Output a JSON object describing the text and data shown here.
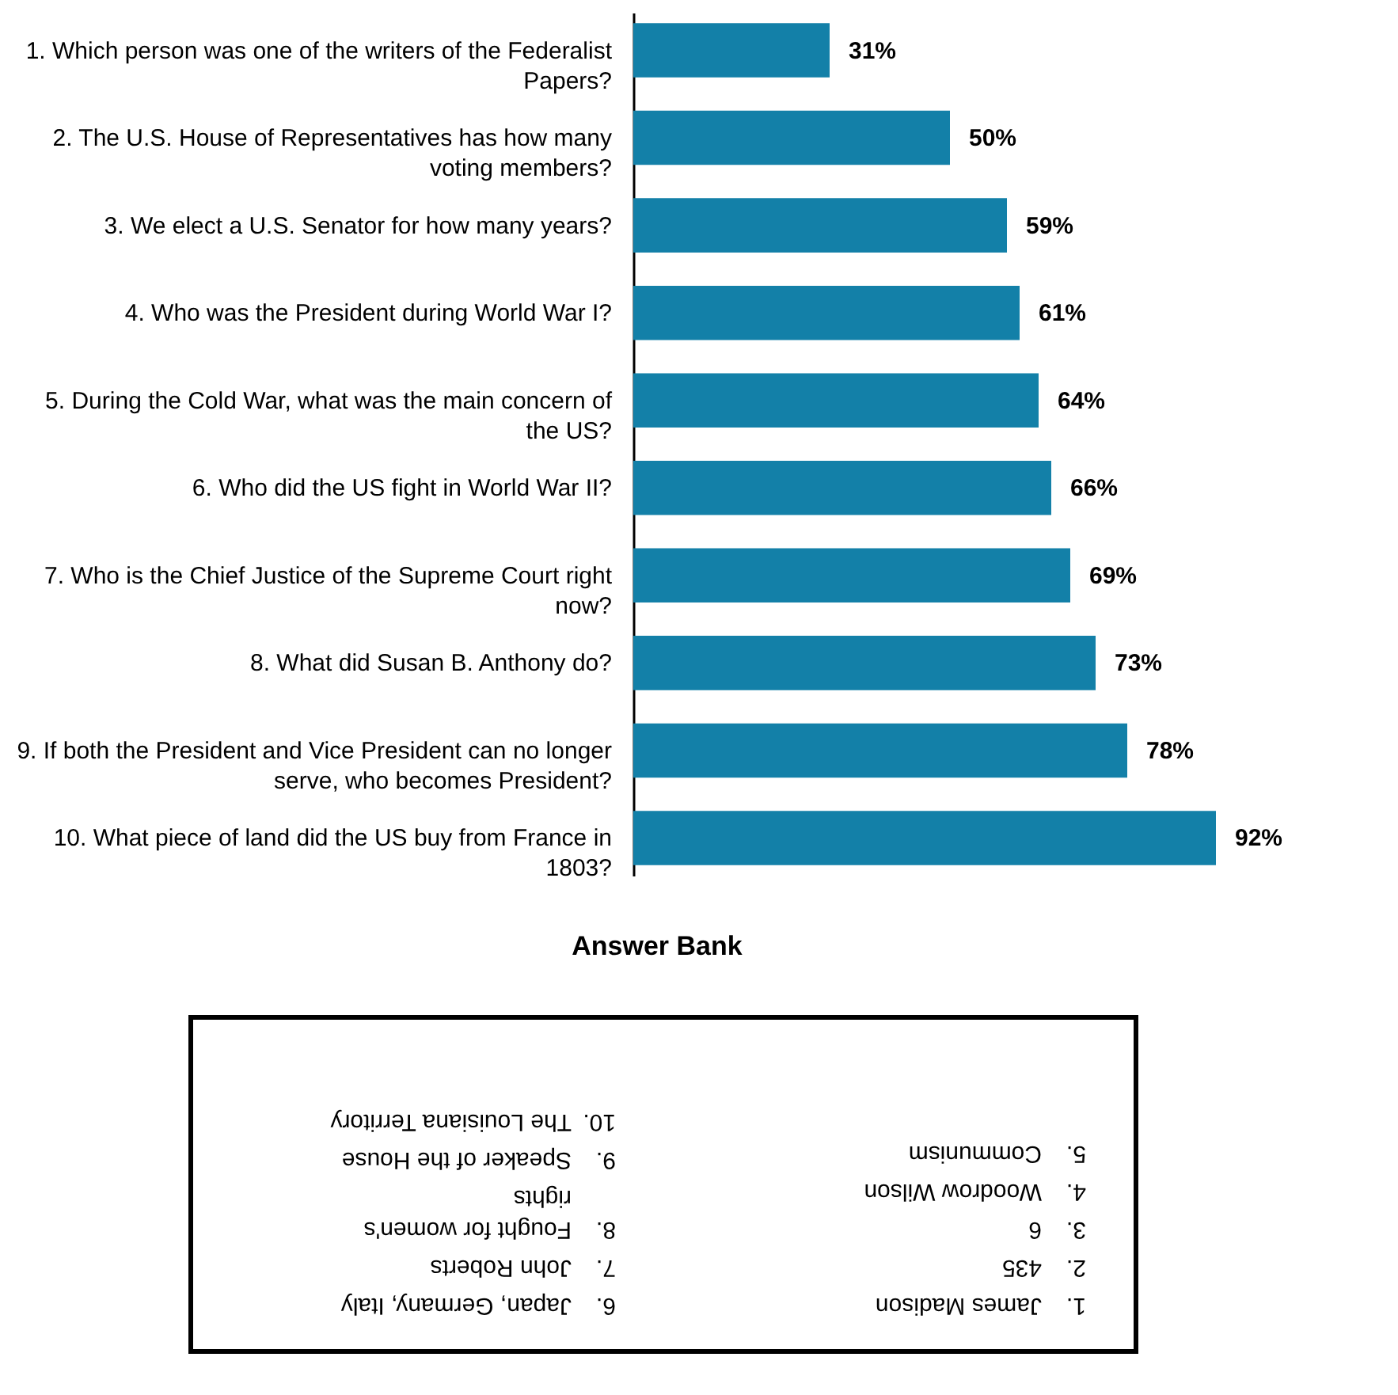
{
  "chart_data": {
    "type": "bar",
    "orientation": "horizontal",
    "color": "#1380a8",
    "categories": [
      "1. Which person was one of the writers of the Federalist Papers?",
      "2. The U.S. House of Representatives has how many voting members?",
      "3. We elect a U.S. Senator for how many years?",
      "4. Who was the President during World War I?",
      "5. During the Cold War, what was the main concern of the US?",
      "6. Who did the US fight in World War II?",
      "7. Who is the Chief Justice of the Supreme Court right now?",
      "8. What did Susan B. Anthony do?",
      "9. If both the President and Vice President can no longer serve, who becomes President?",
      "10. What piece of land did the US buy from France in 1803?"
    ],
    "values": [
      31,
      50,
      59,
      61,
      64,
      66,
      69,
      73,
      78,
      92
    ],
    "value_labels": [
      "31%",
      "50%",
      "59%",
      "61%",
      "64%",
      "66%",
      "69%",
      "73%",
      "78%",
      "92%"
    ],
    "annotations": [
      "Answer Bank",
      "1. James Madison",
      "2. 435",
      "3. 6",
      "4. Woodrow Wilson",
      "5. Communism",
      "6. Japan, Germany, Italy",
      "7. John Roberts",
      "8. Fought for women's rights",
      "9. Speaker of the House",
      "10. The Louisiana Territory"
    ]
  }
}
